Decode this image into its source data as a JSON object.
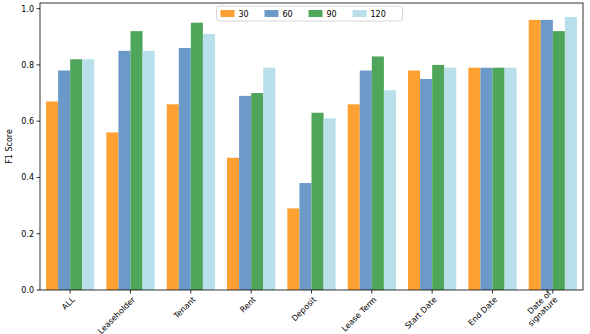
{
  "chart_data": {
    "type": "bar",
    "categories": [
      "ALL",
      "Leaseholder",
      "Tenant",
      "Rent",
      "Deposit",
      "Lease Term",
      "Start Date",
      "End Date",
      "Date of\nsignature"
    ],
    "series": [
      {
        "name": "30",
        "color": "#ffa033",
        "values": [
          0.67,
          0.56,
          0.66,
          0.47,
          0.29,
          0.66,
          0.78,
          0.79,
          0.96
        ]
      },
      {
        "name": "60",
        "color": "#6b99c8",
        "values": [
          0.78,
          0.85,
          0.86,
          0.69,
          0.38,
          0.78,
          0.75,
          0.79,
          0.96
        ]
      },
      {
        "name": "90",
        "color": "#4fa65a",
        "values": [
          0.82,
          0.92,
          0.95,
          0.7,
          0.63,
          0.83,
          0.8,
          0.79,
          0.92
        ]
      },
      {
        "name": "120",
        "color": "#b8dfea",
        "values": [
          0.82,
          0.85,
          0.91,
          0.79,
          0.61,
          0.71,
          0.79,
          0.79,
          0.97
        ]
      }
    ],
    "y_label": "F1 Score",
    "ylim": [
      0,
      1.02
    ],
    "yticks": [
      {
        "value": 0,
        "label": "0.0"
      },
      {
        "value": 0.2,
        "label": "0.2"
      },
      {
        "value": 0.4,
        "label": "0.4"
      },
      {
        "value": 0.6,
        "label": "0.6"
      },
      {
        "value": 0.8,
        "label": "0.8"
      },
      {
        "value": 1.0,
        "label": "1.0"
      }
    ],
    "legend": "top",
    "grid": false
  }
}
